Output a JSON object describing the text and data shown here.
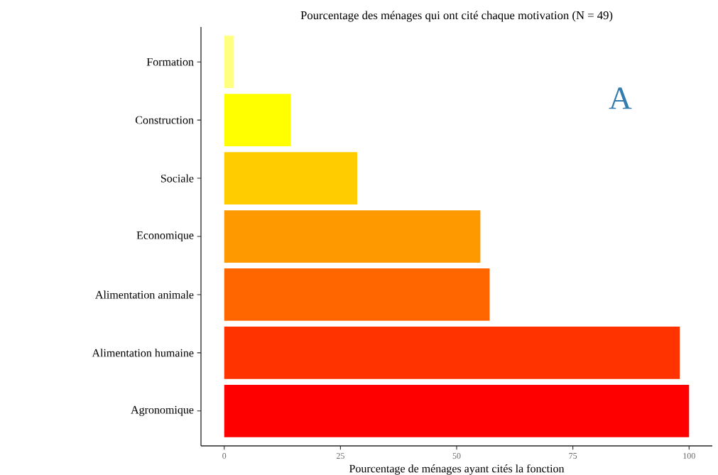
{
  "chart_data": {
    "type": "bar",
    "orientation": "horizontal",
    "title": "Pourcentage des ménages qui ont cité chaque motivation (N = 49)",
    "xlabel": "Pourcentage de ménages ayant cités la fonction",
    "categories": [
      "Formation",
      "Construction",
      "Sociale",
      "Economique",
      "Alimentation animale",
      "Alimentation humaine",
      "Agronomique"
    ],
    "values": [
      2.0,
      14.3,
      28.6,
      55.1,
      57.1,
      98.0,
      100
    ],
    "colors": [
      "#ffff80",
      "#ffff00",
      "#ffcc00",
      "#ff9900",
      "#ff6600",
      "#ff3300",
      "#ff0000"
    ],
    "xlim": [
      -5,
      105
    ],
    "xticks": [
      0,
      25,
      50,
      75,
      100
    ],
    "grid": false,
    "annotations": [
      "A"
    ]
  }
}
